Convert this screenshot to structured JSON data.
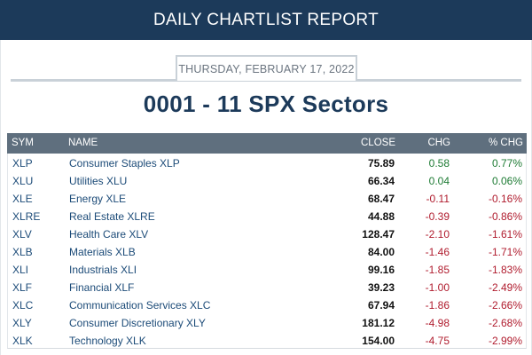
{
  "header": {
    "title": "DAILY CHARTLIST REPORT"
  },
  "report": {
    "date": "THURSDAY, FEBRUARY 17, 2022",
    "title": "0001 - 11 SPX Sectors"
  },
  "table": {
    "columns": [
      "SYM",
      "NAME",
      "CLOSE",
      "CHG",
      "% CHG"
    ],
    "rows": [
      {
        "sym": "XLP",
        "name": "Consumer Staples XLP",
        "close": "75.89",
        "chg": "0.58",
        "pct": "0.77%"
      },
      {
        "sym": "XLU",
        "name": "Utilities XLU",
        "close": "66.34",
        "chg": "0.04",
        "pct": "0.06%"
      },
      {
        "sym": "XLE",
        "name": "Energy XLE",
        "close": "68.47",
        "chg": "-0.11",
        "pct": "-0.16%"
      },
      {
        "sym": "XLRE",
        "name": "Real Estate XLRE",
        "close": "44.88",
        "chg": "-0.39",
        "pct": "-0.86%"
      },
      {
        "sym": "XLV",
        "name": "Health Care XLV",
        "close": "128.47",
        "chg": "-2.10",
        "pct": "-1.61%"
      },
      {
        "sym": "XLB",
        "name": "Materials XLB",
        "close": "84.00",
        "chg": "-1.46",
        "pct": "-1.71%"
      },
      {
        "sym": "XLI",
        "name": "Industrials XLI",
        "close": "99.16",
        "chg": "-1.85",
        "pct": "-1.83%"
      },
      {
        "sym": "XLF",
        "name": "Financial XLF",
        "close": "39.23",
        "chg": "-1.00",
        "pct": "-2.49%"
      },
      {
        "sym": "XLC",
        "name": "Communication Services XLC",
        "close": "67.94",
        "chg": "-1.86",
        "pct": "-2.66%"
      },
      {
        "sym": "XLY",
        "name": "Consumer Discretionary XLY",
        "close": "181.12",
        "chg": "-4.98",
        "pct": "-2.68%"
      },
      {
        "sym": "XLK",
        "name": "Technology XLK",
        "close": "154.00",
        "chg": "-4.75",
        "pct": "-2.99%"
      }
    ]
  },
  "colors": {
    "header_bg": "#1c3a5a",
    "table_header_bg": "#5f6f7e",
    "positive": "#1e7b34",
    "negative": "#b01c2e",
    "link": "#1c4b78"
  }
}
